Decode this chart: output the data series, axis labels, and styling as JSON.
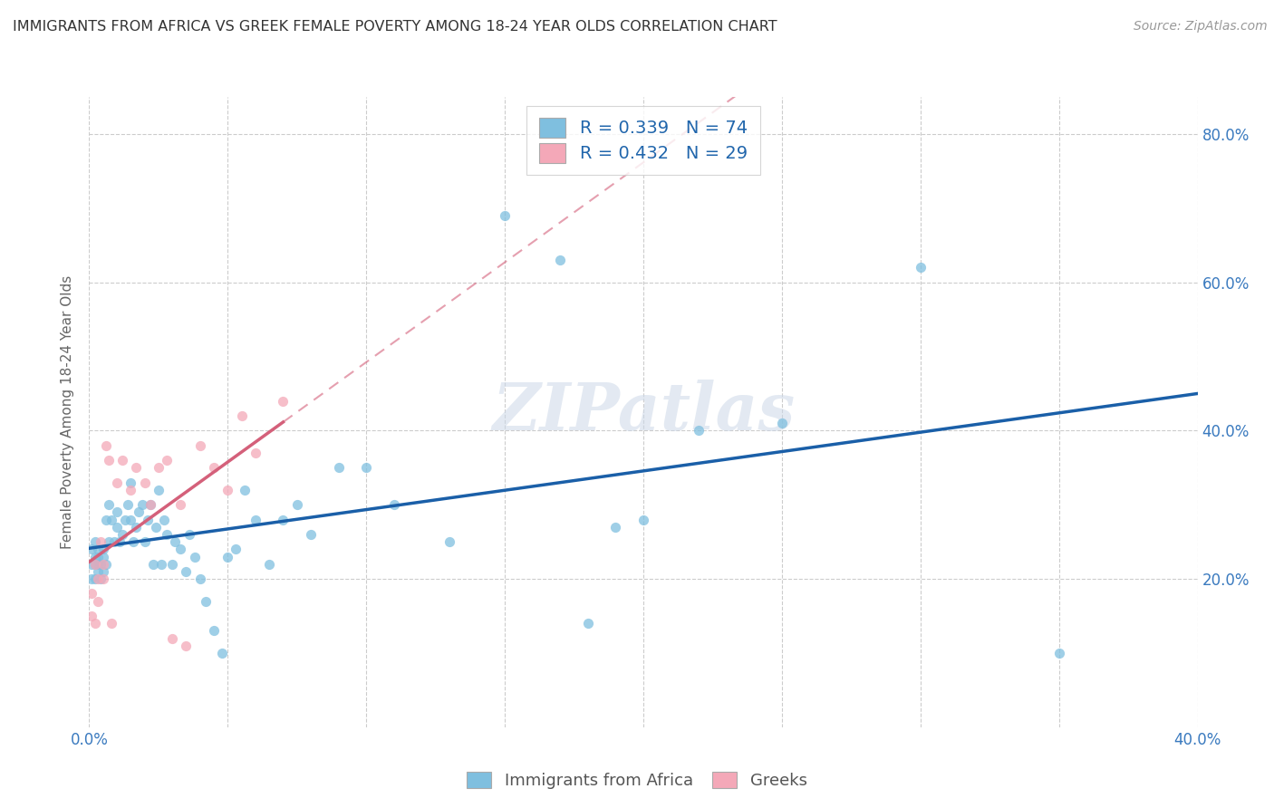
{
  "title": "IMMIGRANTS FROM AFRICA VS GREEK FEMALE POVERTY AMONG 18-24 YEAR OLDS CORRELATION CHART",
  "source": "Source: ZipAtlas.com",
  "ylabel": "Female Poverty Among 18-24 Year Olds",
  "xlim": [
    0.0,
    0.4
  ],
  "ylim": [
    0.0,
    0.85
  ],
  "xticks": [
    0.0,
    0.05,
    0.1,
    0.15,
    0.2,
    0.25,
    0.3,
    0.35,
    0.4
  ],
  "yticks": [
    0.2,
    0.4,
    0.6,
    0.8
  ],
  "ytick_labels": [
    "20.0%",
    "40.0%",
    "60.0%",
    "80.0%"
  ],
  "blue_color": "#7fbfdf",
  "pink_color": "#f4a8b8",
  "blue_line_color": "#1a5fa8",
  "pink_line_color": "#d4607a",
  "R_blue": 0.339,
  "N_blue": 74,
  "R_pink": 0.432,
  "N_pink": 29,
  "blue_scatter_x": [
    0.001,
    0.001,
    0.001,
    0.002,
    0.002,
    0.002,
    0.002,
    0.003,
    0.003,
    0.003,
    0.003,
    0.004,
    0.004,
    0.005,
    0.005,
    0.005,
    0.006,
    0.006,
    0.007,
    0.007,
    0.008,
    0.009,
    0.01,
    0.01,
    0.011,
    0.012,
    0.013,
    0.014,
    0.015,
    0.015,
    0.016,
    0.017,
    0.018,
    0.019,
    0.02,
    0.021,
    0.022,
    0.023,
    0.024,
    0.025,
    0.026,
    0.027,
    0.028,
    0.03,
    0.031,
    0.033,
    0.035,
    0.036,
    0.038,
    0.04,
    0.042,
    0.045,
    0.048,
    0.05,
    0.053,
    0.056,
    0.06,
    0.065,
    0.07,
    0.075,
    0.08,
    0.09,
    0.1,
    0.11,
    0.13,
    0.15,
    0.17,
    0.19,
    0.22,
    0.25,
    0.3,
    0.35,
    0.18,
    0.2
  ],
  "blue_scatter_y": [
    0.24,
    0.22,
    0.2,
    0.25,
    0.22,
    0.2,
    0.23,
    0.22,
    0.24,
    0.21,
    0.23,
    0.22,
    0.2,
    0.24,
    0.21,
    0.23,
    0.28,
    0.22,
    0.3,
    0.25,
    0.28,
    0.25,
    0.27,
    0.29,
    0.25,
    0.26,
    0.28,
    0.3,
    0.28,
    0.33,
    0.25,
    0.27,
    0.29,
    0.3,
    0.25,
    0.28,
    0.3,
    0.22,
    0.27,
    0.32,
    0.22,
    0.28,
    0.26,
    0.22,
    0.25,
    0.24,
    0.21,
    0.26,
    0.23,
    0.2,
    0.17,
    0.13,
    0.1,
    0.23,
    0.24,
    0.32,
    0.28,
    0.22,
    0.28,
    0.3,
    0.26,
    0.35,
    0.35,
    0.3,
    0.25,
    0.69,
    0.63,
    0.27,
    0.4,
    0.41,
    0.62,
    0.1,
    0.14,
    0.28
  ],
  "pink_scatter_x": [
    0.001,
    0.001,
    0.002,
    0.002,
    0.003,
    0.003,
    0.004,
    0.005,
    0.005,
    0.006,
    0.007,
    0.008,
    0.01,
    0.012,
    0.015,
    0.017,
    0.02,
    0.022,
    0.025,
    0.028,
    0.03,
    0.033,
    0.04,
    0.045,
    0.05,
    0.055,
    0.06,
    0.07,
    0.035
  ],
  "pink_scatter_y": [
    0.18,
    0.15,
    0.22,
    0.14,
    0.2,
    0.17,
    0.25,
    0.22,
    0.2,
    0.38,
    0.36,
    0.14,
    0.33,
    0.36,
    0.32,
    0.35,
    0.33,
    0.3,
    0.35,
    0.36,
    0.12,
    0.3,
    0.38,
    0.35,
    0.32,
    0.42,
    0.37,
    0.44,
    0.11
  ]
}
